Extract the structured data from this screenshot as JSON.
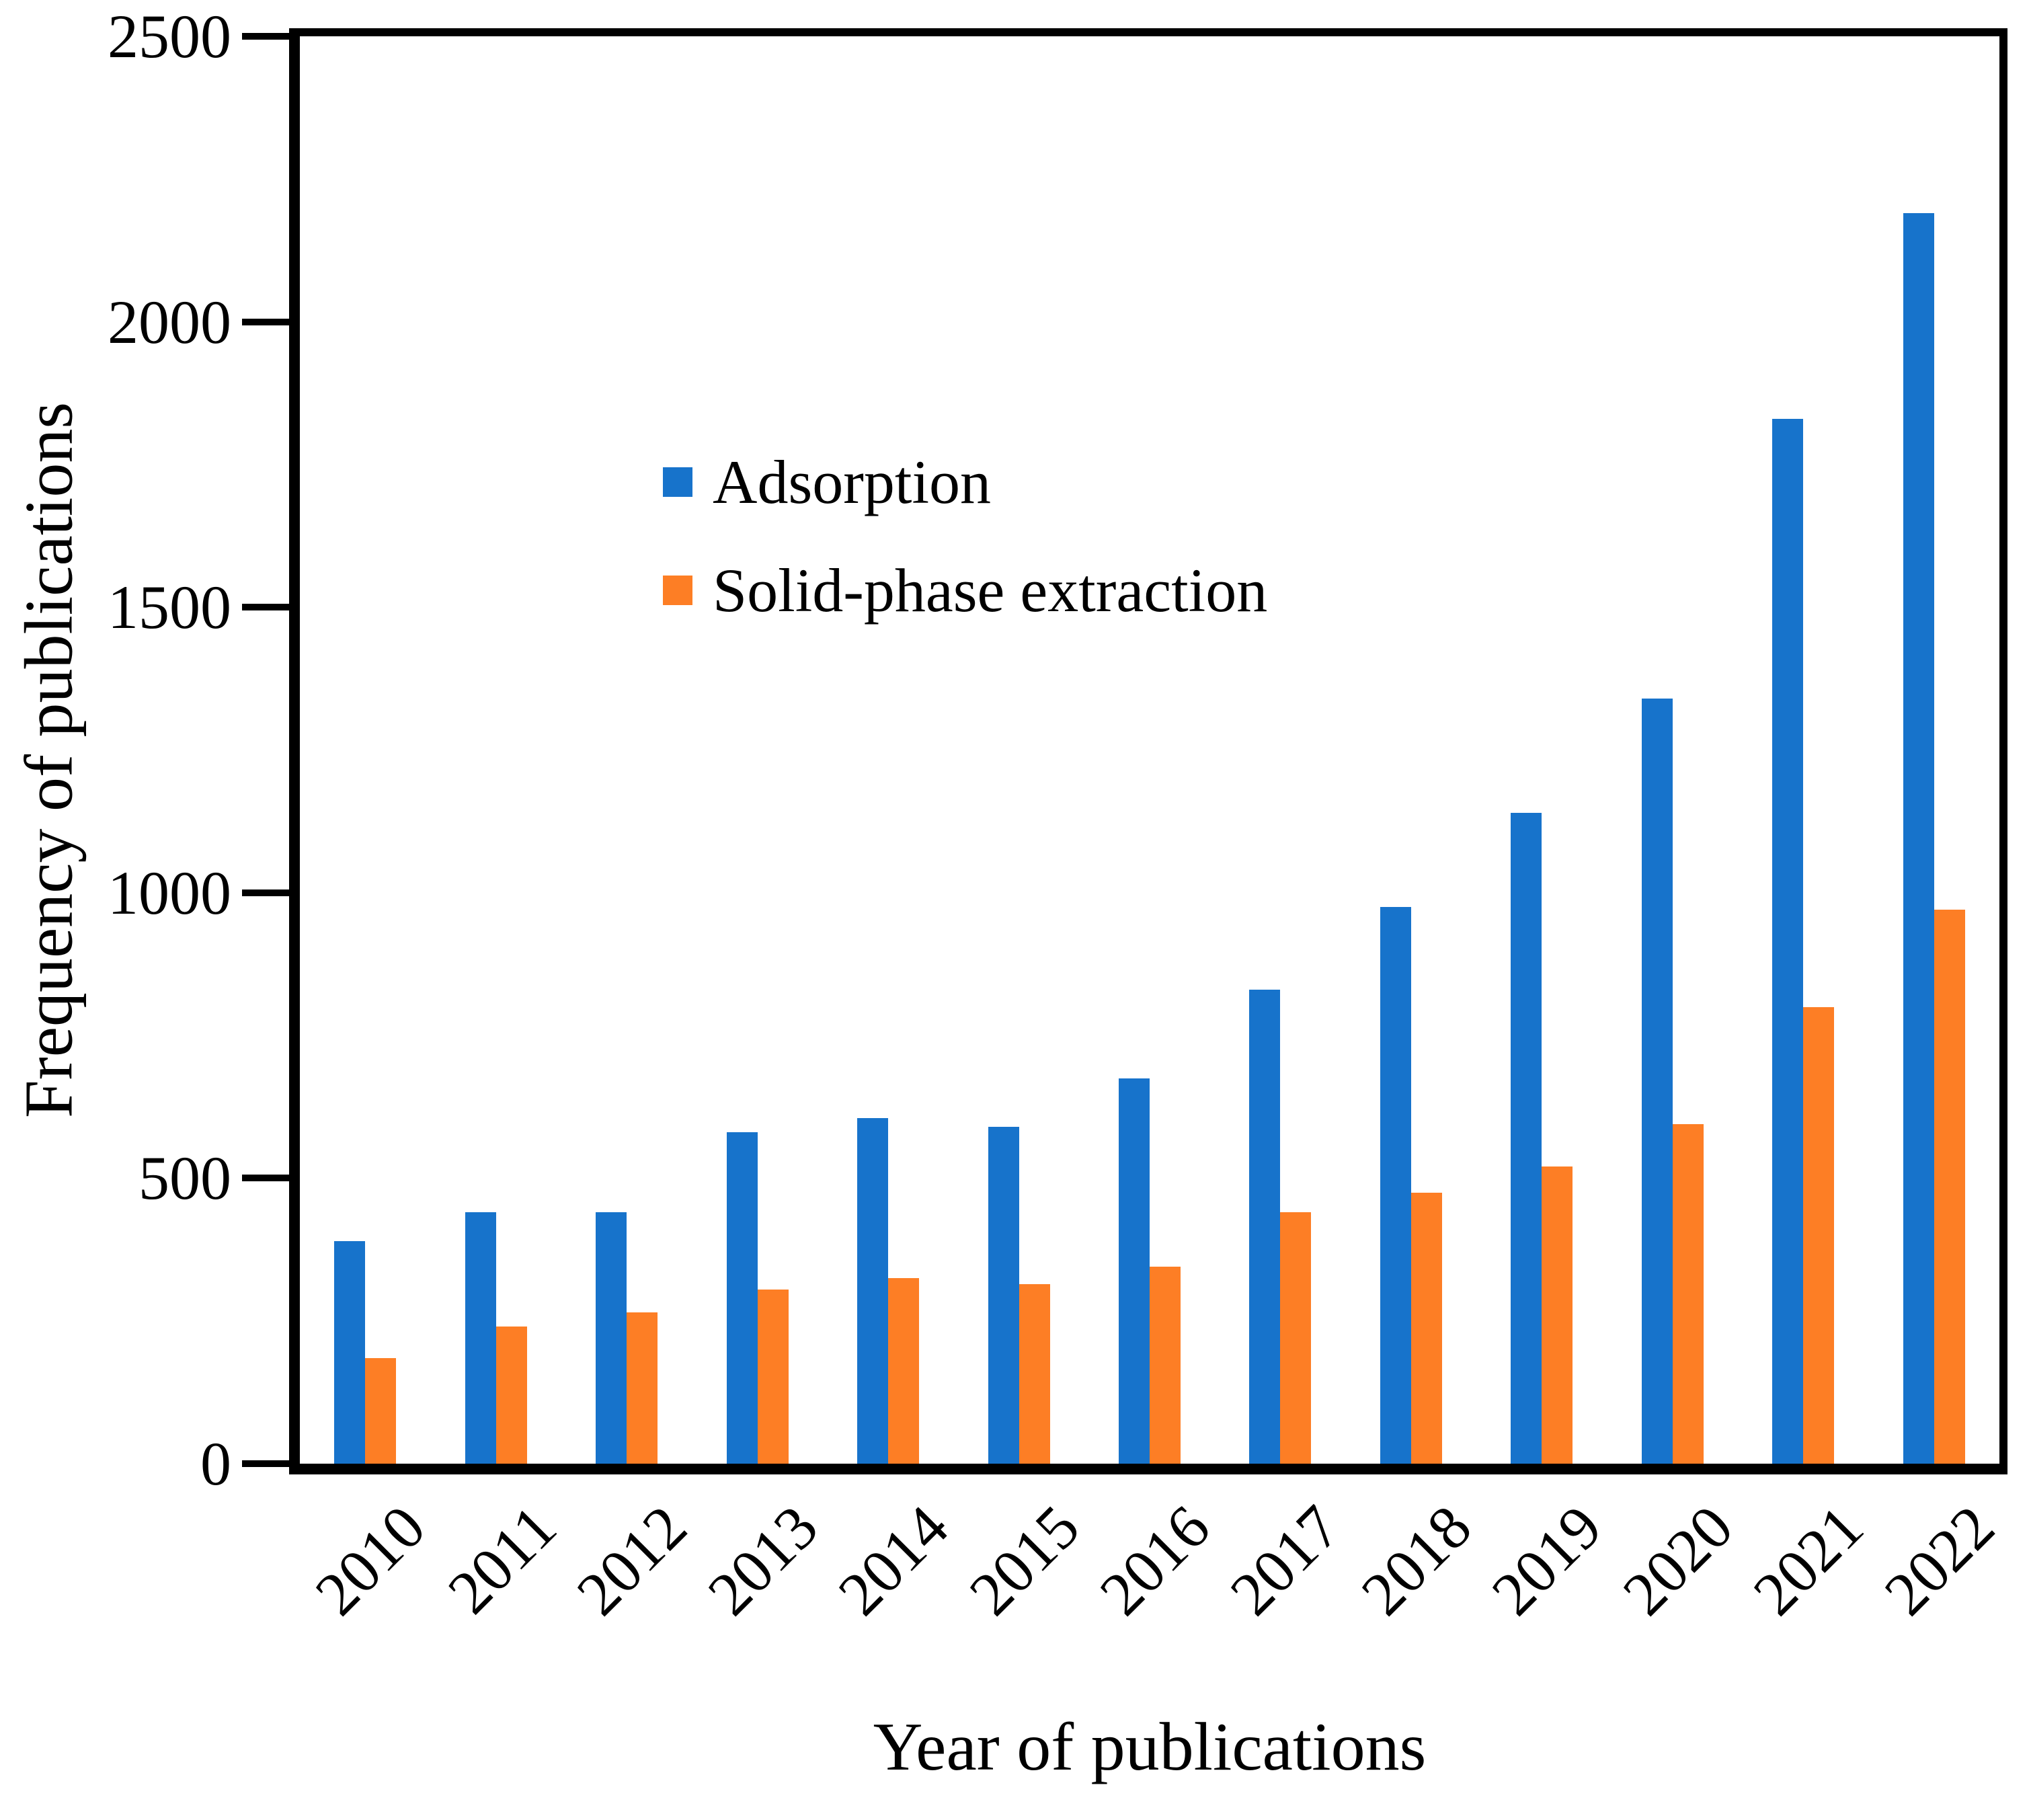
{
  "figure": {
    "background": "#ffffff",
    "axis_color": "#000000"
  },
  "chart_data": {
    "type": "bar",
    "title": "",
    "xlabel": "Year of publications",
    "ylabel": "Frequency of publications",
    "categories": [
      "2010",
      "2011",
      "2012",
      "2013",
      "2014",
      "2015",
      "2016",
      "2017",
      "2018",
      "2019",
      "2020",
      "2021",
      "2022"
    ],
    "series": [
      {
        "name": "Adsorption",
        "color": "#1773CB",
        "values": [
          390,
          440,
          440,
          580,
          605,
          590,
          675,
          830,
          975,
          1140,
          1340,
          1830,
          2190
        ]
      },
      {
        "name": "Solid-phase extraction",
        "color": "#FD7E25",
        "values": [
          185,
          240,
          265,
          305,
          325,
          315,
          345,
          440,
          475,
          520,
          595,
          800,
          970
        ]
      }
    ],
    "ylim": [
      0,
      2500
    ],
    "yticks": [
      0,
      500,
      1000,
      1500,
      2000,
      2500
    ],
    "grid": false,
    "legend_position": "inside-upper-left",
    "bar_orientation": "vertical",
    "x_tick_rotation_deg": 45
  }
}
